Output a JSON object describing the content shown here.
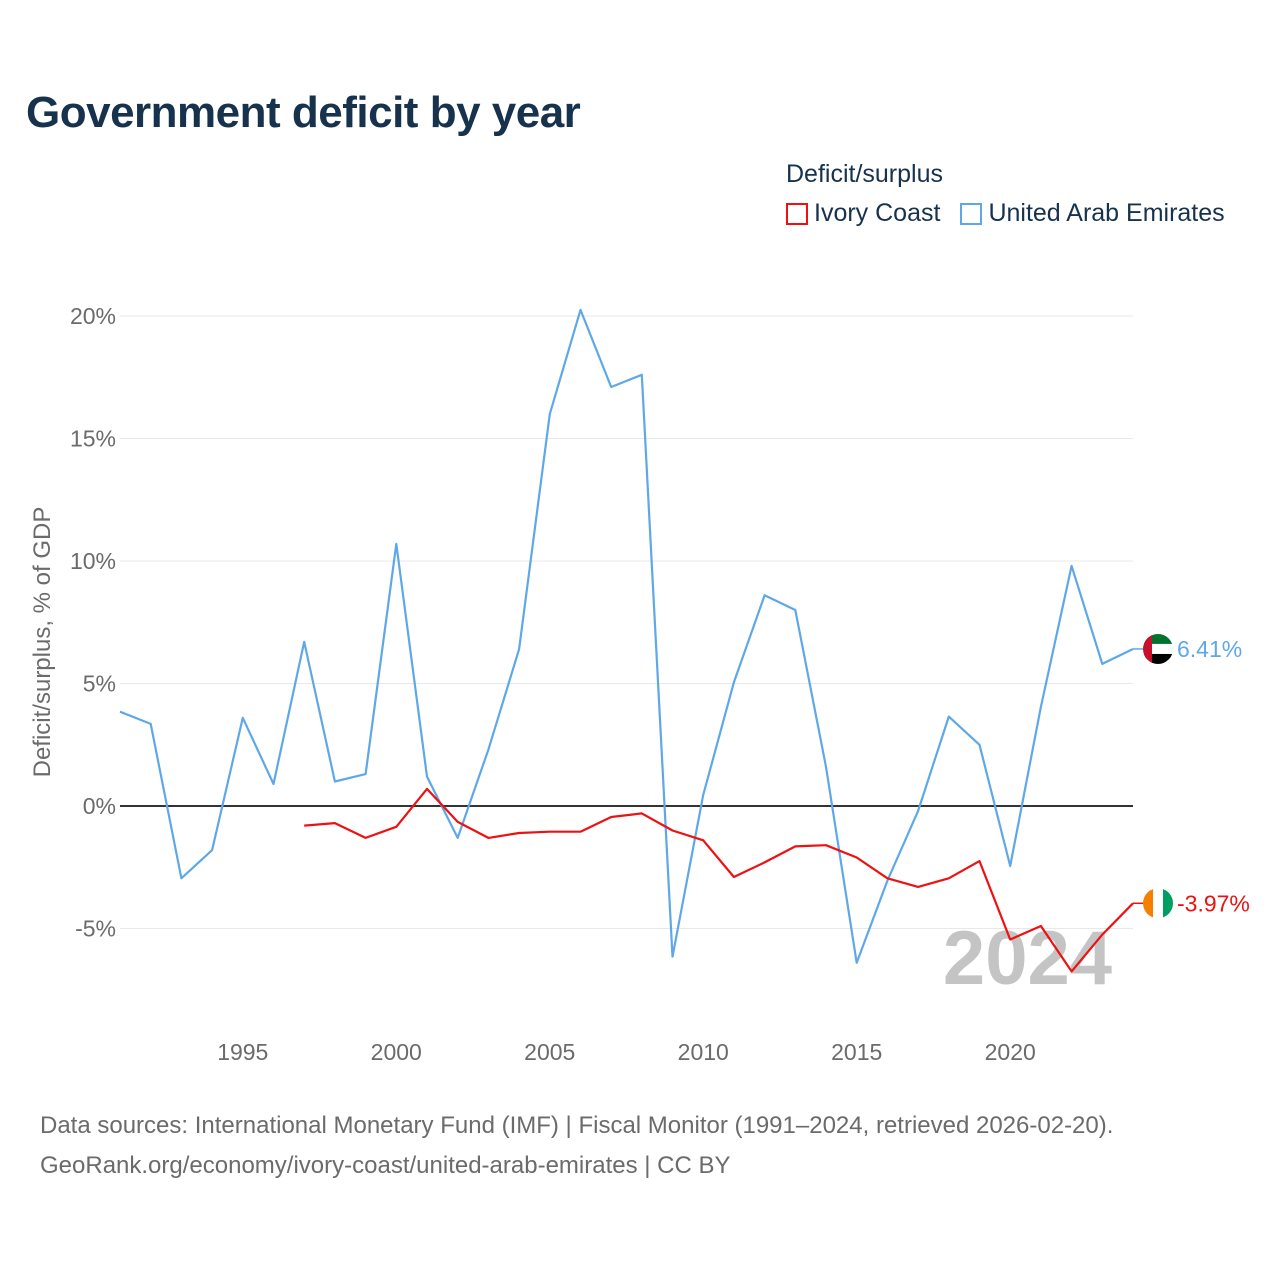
{
  "colors": {
    "ivory_coast": "#ee1111",
    "uae": "#5fa8e8",
    "title": "#17324d",
    "axis_text": "#6b6b6b",
    "grid": "#e8e8e8",
    "zero": "#333333",
    "watermark": "#c4c4c4"
  },
  "chart_data": {
    "type": "line",
    "title": "Government deficit by year",
    "ylabel": "Deficit/surplus, % of GDP",
    "xlabel": "",
    "legend_title": "Deficit/surplus",
    "legend_position": "top-right",
    "xlim": [
      1991,
      2024
    ],
    "ylim": [
      -8,
      20.5
    ],
    "yticks": [
      20,
      15,
      10,
      5,
      0,
      -5
    ],
    "ytick_labels": [
      "20%",
      "15%",
      "10%",
      "5%",
      "0%",
      "-5%"
    ],
    "xticks": [
      1995,
      2000,
      2005,
      2010,
      2015,
      2020
    ],
    "xtick_labels": [
      "1995",
      "2000",
      "2005",
      "2010",
      "2015",
      "2020"
    ],
    "watermark_year": "2024",
    "series": [
      {
        "name": "Ivory Coast",
        "color": "#ee1111",
        "end_label": "-3.97%",
        "flag": "ivory-coast",
        "x": [
          1997,
          1998,
          1999,
          2000,
          2001,
          2002,
          2003,
          2004,
          2005,
          2006,
          2007,
          2008,
          2009,
          2010,
          2011,
          2012,
          2013,
          2014,
          2015,
          2016,
          2017,
          2018,
          2019,
          2020,
          2021,
          2022,
          2023,
          2024
        ],
        "values": [
          -0.8,
          -0.7,
          -1.3,
          -0.85,
          0.7,
          -0.65,
          -1.3,
          -1.1,
          -1.05,
          -1.05,
          -0.45,
          -0.3,
          -1.0,
          -1.4,
          -2.9,
          -2.3,
          -1.65,
          -1.6,
          -2.1,
          -2.95,
          -3.3,
          -2.95,
          -2.25,
          -5.45,
          -4.9,
          -6.75,
          -5.25,
          -3.97
        ]
      },
      {
        "name": "United Arab Emirates",
        "color": "#5fa8e8",
        "end_label": "6.41%",
        "flag": "united-arab-emirates",
        "x": [
          1991,
          1992,
          1993,
          1994,
          1995,
          1996,
          1997,
          1998,
          1999,
          2000,
          2001,
          2002,
          2003,
          2004,
          2005,
          2006,
          2007,
          2008,
          2009,
          2010,
          2011,
          2012,
          2013,
          2014,
          2015,
          2016,
          2017,
          2018,
          2019,
          2020,
          2021,
          2022,
          2023,
          2024
        ],
        "values": [
          3.85,
          3.35,
          -2.95,
          -1.8,
          3.6,
          0.9,
          6.7,
          1.0,
          1.3,
          10.7,
          1.2,
          -1.3,
          2.3,
          6.4,
          16.0,
          20.25,
          17.1,
          17.6,
          -6.15,
          0.45,
          5.05,
          8.6,
          8.0,
          1.6,
          -6.4,
          -3.05,
          -0.2,
          3.65,
          2.5,
          -2.45,
          4.05,
          9.8,
          5.8,
          6.41
        ]
      }
    ]
  },
  "legend": {
    "title": "Deficit/surplus",
    "items": [
      {
        "label": "Ivory Coast"
      },
      {
        "label": "United Arab Emirates"
      }
    ]
  },
  "source": {
    "line1": "Data sources: International Monetary Fund (IMF) | Fiscal Monitor (1991–2024, retrieved 2026-02-20).",
    "line2": "GeoRank.org/economy/ivory-coast/united-arab-emirates | CC BY"
  }
}
